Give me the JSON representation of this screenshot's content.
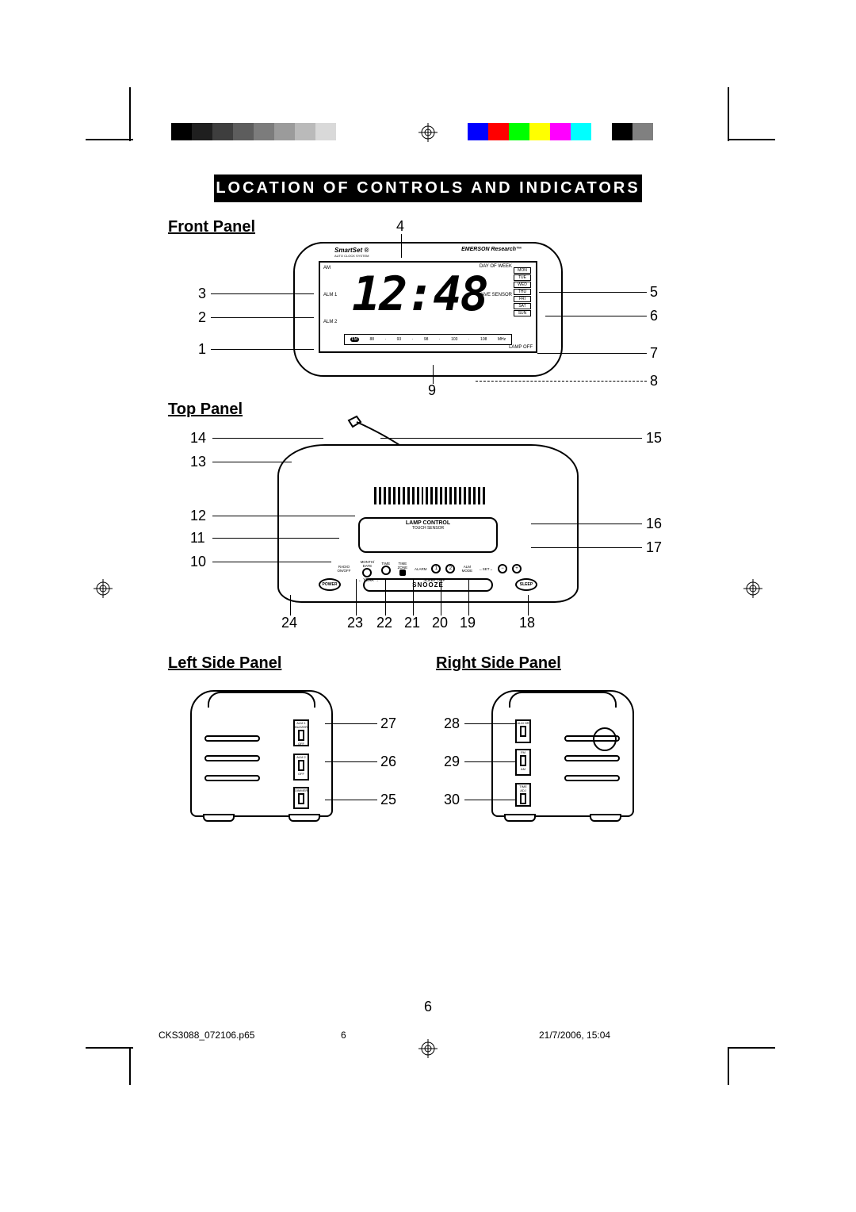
{
  "title": "LOCATION OF CONTROLS AND INDICATORS",
  "sections": {
    "front": "Front Panel",
    "top": "Top Panel",
    "left": "Left Side Panel",
    "right": "Right Side Panel"
  },
  "callouts": {
    "front_left": [
      "3",
      "2",
      "1"
    ],
    "front_right": [
      "5",
      "6",
      "7"
    ],
    "front_top": "4",
    "front_bottom_right": "8",
    "front_bottom": "9",
    "top_left": [
      "14",
      "13",
      "12",
      "11",
      "10"
    ],
    "top_right": [
      "15",
      "16",
      "17"
    ],
    "top_bottom": [
      "24",
      "23",
      "22",
      "21",
      "20",
      "19",
      "18"
    ],
    "left_side": [
      "27",
      "26",
      "25"
    ],
    "right_side": [
      "28",
      "29",
      "30"
    ]
  },
  "clock": {
    "brand1": "SmartSet ®",
    "brand1_sub": "AUTO CLOCK SYSTEM",
    "brand2": "EMERSON Research™",
    "time": "12:48",
    "am": "AM",
    "alm1": "ALM 1",
    "alm2": "ALM 2",
    "day_header": "DAY OF WEEK",
    "days": [
      "MON",
      "TUE",
      "WED",
      "THU",
      "FRI",
      "SAT",
      "SUN"
    ],
    "wave": "WAVE SENSOR",
    "fm": "FM",
    "am_band": "AM",
    "fm_freqs": [
      "88",
      "93",
      "98",
      "103",
      "108"
    ],
    "am_freqs": [
      "530",
      "650",
      "850",
      "1000",
      "1300",
      "1710"
    ],
    "mhz": "MHz",
    "khz": "kHz",
    "lamp_off": "LAMP OFF"
  },
  "top_panel": {
    "lamp_title": "LAMP CONTROL",
    "lamp_sub": "TOUCH SENSOR",
    "labels": {
      "radio": "RADIO ON/OFF",
      "month": "MONTH/ DATE",
      "time": "TIME",
      "timezone": "TIME ZONE",
      "alarm": "ALARM",
      "alm_mode": "ALM MODE",
      "set_left": "←SET→",
      "year": "← YEAR →",
      "sleep_off": "SLEEP OFF",
      "one": "1",
      "two": "2",
      "minus": "−",
      "plus": "+"
    },
    "power": "POWER",
    "snooze": "SNOOZE",
    "sleep": "SLEEP"
  },
  "side_switches": {
    "left_upper": [
      "ALM 1",
      "BUZZER",
      "MUSIC",
      "OFF"
    ],
    "left_mid": [
      "ALM 2",
      "BUZZER",
      "MUSIC",
      "OFF"
    ],
    "left_lower": [
      "DIMMER",
      "HI",
      "LO"
    ],
    "right_upper": [
      "ALM HR",
      "ON",
      "OFF"
    ],
    "right_mid": [
      "FM",
      "BAND",
      "AM"
    ],
    "right_lower": [
      "8",
      "TIME ADJ",
      "9"
    ]
  },
  "page_number": "6",
  "footer": {
    "file": "CKS3088_072106.p65",
    "pg": "6",
    "date": "21/7/2006, 15:04"
  },
  "colorbar_gray": [
    "#000000",
    "#1f1f1f",
    "#3e3e3e",
    "#5d5d5d",
    "#7c7c7c",
    "#9b9b9b",
    "#bababa",
    "#d9d9d9",
    "#ffffff"
  ],
  "colorbar_color": [
    "#0000ff",
    "#ff0000",
    "#00ff00",
    "#ffff00",
    "#ff00ff",
    "#00ffff",
    "#ffffff",
    "#000000",
    "#808080"
  ],
  "colorbar_sw_width": 26
}
